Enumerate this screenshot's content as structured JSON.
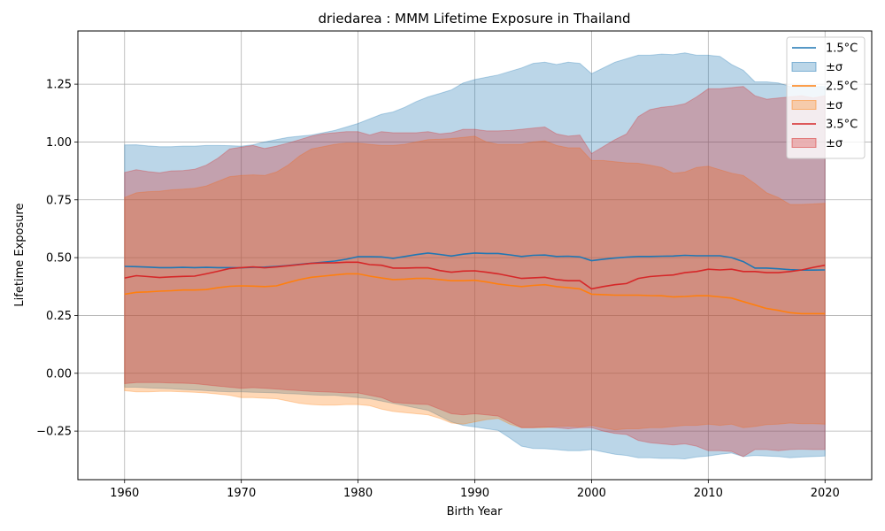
{
  "chart_data": {
    "type": "line",
    "title": "driedarea : MMM Lifetime Exposure in Thailand",
    "xlabel": "Birth Year",
    "ylabel": "Lifetime Exposure",
    "xlim": [
      1956,
      2024
    ],
    "ylim": [
      -0.46,
      1.48
    ],
    "xticks": [
      1960,
      1970,
      1980,
      1990,
      2000,
      2010,
      2020
    ],
    "yticks": [
      -0.25,
      0.0,
      0.25,
      0.5,
      0.75,
      1.0,
      1.25
    ],
    "ytick_labels": [
      "−0.25",
      "0.00",
      "0.25",
      "0.50",
      "0.75",
      "1.00",
      "1.25"
    ],
    "grid": true,
    "legend_position": "top-right",
    "x": [
      1960,
      1961,
      1962,
      1963,
      1964,
      1965,
      1966,
      1967,
      1968,
      1969,
      1970,
      1971,
      1972,
      1973,
      1974,
      1975,
      1976,
      1977,
      1978,
      1979,
      1980,
      1981,
      1982,
      1983,
      1984,
      1985,
      1986,
      1987,
      1988,
      1989,
      1990,
      1991,
      1992,
      1993,
      1994,
      1995,
      1996,
      1997,
      1998,
      1999,
      2000,
      2001,
      2002,
      2003,
      2004,
      2005,
      2006,
      2007,
      2008,
      2009,
      2010,
      2011,
      2012,
      2013,
      2014,
      2015,
      2016,
      2017,
      2018,
      2019,
      2020
    ],
    "series": [
      {
        "name": "1.5°C",
        "band_label": "±σ",
        "color": "#1f77b4",
        "band_color": "#1f77b4",
        "band_opacity": 0.3,
        "mean": [
          0.462,
          0.461,
          0.459,
          0.457,
          0.457,
          0.458,
          0.457,
          0.458,
          0.457,
          0.457,
          0.456,
          0.458,
          0.459,
          0.462,
          0.466,
          0.471,
          0.476,
          0.48,
          0.485,
          0.493,
          0.504,
          0.504,
          0.503,
          0.497,
          0.505,
          0.513,
          0.52,
          0.514,
          0.507,
          0.515,
          0.52,
          0.518,
          0.518,
          0.512,
          0.505,
          0.51,
          0.511,
          0.505,
          0.506,
          0.503,
          0.487,
          0.493,
          0.498,
          0.502,
          0.505,
          0.505,
          0.506,
          0.507,
          0.51,
          0.508,
          0.508,
          0.508,
          0.5,
          0.483,
          0.455,
          0.455,
          0.452,
          0.448,
          0.446,
          0.446,
          0.447
        ],
        "upper": [
          0.987,
          0.988,
          0.983,
          0.98,
          0.98,
          0.982,
          0.982,
          0.985,
          0.985,
          0.984,
          0.982,
          0.988,
          1.0,
          1.01,
          1.02,
          1.025,
          1.03,
          1.04,
          1.05,
          1.065,
          1.08,
          1.1,
          1.12,
          1.13,
          1.15,
          1.175,
          1.195,
          1.21,
          1.225,
          1.255,
          1.27,
          1.28,
          1.29,
          1.305,
          1.32,
          1.34,
          1.345,
          1.335,
          1.345,
          1.34,
          1.295,
          1.32,
          1.345,
          1.36,
          1.375,
          1.375,
          1.38,
          1.378,
          1.385,
          1.375,
          1.375,
          1.37,
          1.335,
          1.31,
          1.26,
          1.26,
          1.255,
          1.24,
          1.24,
          1.24,
          1.24
        ],
        "lower": [
          -0.06,
          -0.06,
          -0.063,
          -0.065,
          -0.067,
          -0.07,
          -0.072,
          -0.075,
          -0.078,
          -0.08,
          -0.08,
          -0.082,
          -0.083,
          -0.085,
          -0.088,
          -0.09,
          -0.093,
          -0.095,
          -0.095,
          -0.1,
          -0.105,
          -0.11,
          -0.12,
          -0.13,
          -0.14,
          -0.15,
          -0.16,
          -0.185,
          -0.21,
          -0.225,
          -0.232,
          -0.24,
          -0.247,
          -0.28,
          -0.315,
          -0.325,
          -0.326,
          -0.33,
          -0.335,
          -0.335,
          -0.33,
          -0.34,
          -0.35,
          -0.355,
          -0.365,
          -0.365,
          -0.368,
          -0.368,
          -0.37,
          -0.362,
          -0.358,
          -0.35,
          -0.345,
          -0.36,
          -0.355,
          -0.358,
          -0.36,
          -0.365,
          -0.362,
          -0.36,
          -0.358
        ]
      },
      {
        "name": "2.5°C",
        "band_label": "±σ",
        "color": "#ff7f0e",
        "band_color": "#ff7f0e",
        "band_opacity": 0.3,
        "mean": [
          0.342,
          0.35,
          0.352,
          0.355,
          0.357,
          0.36,
          0.36,
          0.362,
          0.37,
          0.376,
          0.378,
          0.377,
          0.375,
          0.378,
          0.392,
          0.405,
          0.415,
          0.42,
          0.425,
          0.43,
          0.43,
          0.42,
          0.412,
          0.405,
          0.407,
          0.41,
          0.41,
          0.405,
          0.4,
          0.4,
          0.402,
          0.395,
          0.386,
          0.38,
          0.375,
          0.38,
          0.383,
          0.375,
          0.37,
          0.365,
          0.342,
          0.34,
          0.338,
          0.338,
          0.338,
          0.336,
          0.335,
          0.33,
          0.332,
          0.335,
          0.335,
          0.33,
          0.325,
          0.31,
          0.295,
          0.28,
          0.272,
          0.262,
          0.258,
          0.258,
          0.258
        ],
        "upper": [
          0.76,
          0.78,
          0.785,
          0.787,
          0.793,
          0.796,
          0.8,
          0.81,
          0.83,
          0.85,
          0.855,
          0.858,
          0.855,
          0.87,
          0.9,
          0.94,
          0.97,
          0.98,
          0.99,
          0.995,
          0.995,
          0.99,
          0.985,
          0.985,
          0.99,
          1.0,
          1.01,
          1.012,
          1.015,
          1.02,
          1.025,
          1.0,
          0.99,
          0.99,
          0.99,
          1.0,
          1.005,
          0.985,
          0.975,
          0.975,
          0.92,
          0.92,
          0.915,
          0.91,
          0.908,
          0.9,
          0.89,
          0.865,
          0.87,
          0.89,
          0.895,
          0.88,
          0.865,
          0.855,
          0.82,
          0.78,
          0.76,
          0.73,
          0.73,
          0.732,
          0.735
        ],
        "lower": [
          -0.075,
          -0.08,
          -0.08,
          -0.078,
          -0.078,
          -0.08,
          -0.082,
          -0.085,
          -0.09,
          -0.095,
          -0.105,
          -0.105,
          -0.108,
          -0.11,
          -0.12,
          -0.13,
          -0.135,
          -0.138,
          -0.138,
          -0.135,
          -0.135,
          -0.14,
          -0.155,
          -0.165,
          -0.17,
          -0.175,
          -0.18,
          -0.195,
          -0.215,
          -0.22,
          -0.21,
          -0.2,
          -0.195,
          -0.22,
          -0.235,
          -0.235,
          -0.235,
          -0.23,
          -0.228,
          -0.232,
          -0.225,
          -0.235,
          -0.245,
          -0.24,
          -0.24,
          -0.235,
          -0.235,
          -0.23,
          -0.225,
          -0.225,
          -0.22,
          -0.225,
          -0.22,
          -0.235,
          -0.23,
          -0.222,
          -0.22,
          -0.215,
          -0.218,
          -0.218,
          -0.22
        ]
      },
      {
        "name": "3.5°C",
        "band_label": "±σ",
        "color": "#d62728",
        "band_color": "#d62728",
        "band_opacity": 0.3,
        "mean": [
          0.412,
          0.422,
          0.418,
          0.414,
          0.417,
          0.419,
          0.42,
          0.43,
          0.441,
          0.453,
          0.457,
          0.46,
          0.456,
          0.46,
          0.465,
          0.47,
          0.475,
          0.477,
          0.478,
          0.48,
          0.48,
          0.47,
          0.467,
          0.455,
          0.455,
          0.456,
          0.456,
          0.444,
          0.437,
          0.442,
          0.443,
          0.437,
          0.43,
          0.42,
          0.41,
          0.413,
          0.415,
          0.405,
          0.4,
          0.4,
          0.365,
          0.375,
          0.383,
          0.388,
          0.41,
          0.418,
          0.422,
          0.425,
          0.435,
          0.44,
          0.45,
          0.447,
          0.45,
          0.44,
          0.44,
          0.435,
          0.435,
          0.44,
          0.447,
          0.458,
          0.467
        ],
        "upper": [
          0.868,
          0.88,
          0.872,
          0.867,
          0.875,
          0.876,
          0.882,
          0.9,
          0.93,
          0.97,
          0.978,
          0.985,
          0.972,
          0.982,
          0.995,
          1.01,
          1.025,
          1.035,
          1.04,
          1.045,
          1.045,
          1.03,
          1.045,
          1.04,
          1.04,
          1.04,
          1.045,
          1.035,
          1.04,
          1.055,
          1.055,
          1.048,
          1.048,
          1.05,
          1.055,
          1.06,
          1.065,
          1.035,
          1.025,
          1.03,
          0.95,
          0.98,
          1.01,
          1.035,
          1.11,
          1.14,
          1.15,
          1.155,
          1.165,
          1.195,
          1.23,
          1.23,
          1.235,
          1.24,
          1.2,
          1.185,
          1.19,
          1.195,
          1.2,
          1.19,
          1.2
        ],
        "lower": [
          -0.045,
          -0.04,
          -0.04,
          -0.04,
          -0.042,
          -0.043,
          -0.045,
          -0.05,
          -0.055,
          -0.06,
          -0.065,
          -0.062,
          -0.065,
          -0.068,
          -0.072,
          -0.075,
          -0.078,
          -0.08,
          -0.082,
          -0.085,
          -0.085,
          -0.095,
          -0.105,
          -0.125,
          -0.13,
          -0.133,
          -0.135,
          -0.155,
          -0.175,
          -0.18,
          -0.175,
          -0.18,
          -0.185,
          -0.21,
          -0.235,
          -0.235,
          -0.232,
          -0.235,
          -0.24,
          -0.235,
          -0.235,
          -0.25,
          -0.26,
          -0.265,
          -0.29,
          -0.3,
          -0.305,
          -0.31,
          -0.305,
          -0.315,
          -0.335,
          -0.335,
          -0.338,
          -0.36,
          -0.33,
          -0.33,
          -0.335,
          -0.33,
          -0.328,
          -0.33,
          -0.33
        ]
      }
    ]
  }
}
